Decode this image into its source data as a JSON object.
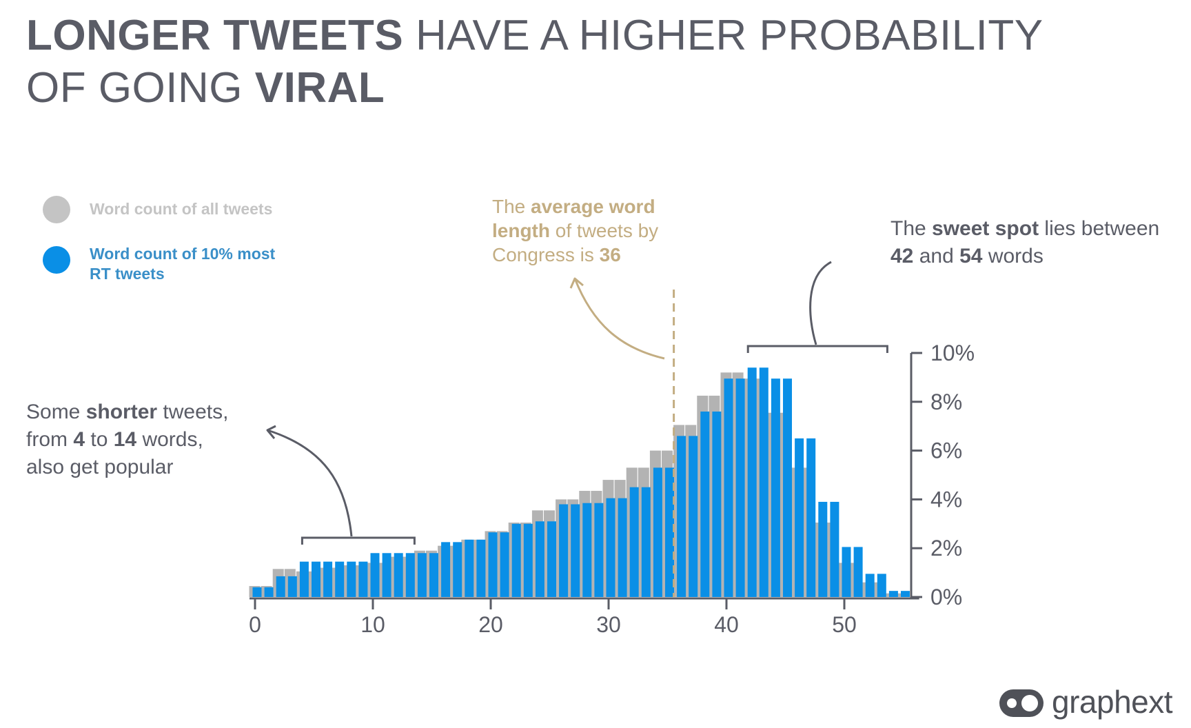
{
  "title": {
    "part1_bold": "LONGER TWEETS",
    "part1_rest": " HAVE A HIGHER PROBABILITY",
    "part2_start": "OF GOING ",
    "part2_bold": "VIRAL"
  },
  "legend": [
    {
      "label": "Word count of all tweets",
      "color": "#c4c4c4"
    },
    {
      "label_line1": "Word count of 10% most",
      "label_line2": "RT tweets",
      "color": "#0a8fe6"
    }
  ],
  "annotations": {
    "average": {
      "l1_pre": "The ",
      "l1_bold": "average word",
      "l2_bold": "length",
      "l2_rest": " of tweets by",
      "l3_pre": "Congress is ",
      "l3_bold": "36"
    },
    "sweet_spot": {
      "l1_pre": "The ",
      "l1_bold": "sweet spot",
      "l1_rest": " lies between",
      "l2_bold1": "42",
      "l2_mid": " and ",
      "l2_bold2": "54",
      "l2_rest": " words"
    },
    "shorter": {
      "l1_pre": "Some ",
      "l1_bold": "shorter",
      "l1_rest": " tweets,",
      "l2_pre": "from ",
      "l2_bold1": "4",
      "l2_mid": " to ",
      "l2_bold2": "14",
      "l2_rest": " words,",
      "l3": "also get popular"
    }
  },
  "logo": {
    "text": "graphext",
    "icon": "graphext-logo-icon"
  },
  "colors": {
    "all": "#b3b3b3",
    "rt": "#0a8fe6",
    "axis": "#5a5c66",
    "gold": "#c3ad82"
  },
  "chart_data": {
    "type": "bar",
    "xlabel": "",
    "ylabel": "",
    "xlim": [
      0,
      56
    ],
    "ylim": [
      0,
      10
    ],
    "x_ticks": [
      "0",
      "10",
      "20",
      "30",
      "40",
      "50"
    ],
    "y_ticks": [
      "0%",
      "2%",
      "4%",
      "6%",
      "8%",
      "10%"
    ],
    "y_axis_position": "right",
    "x": [
      0,
      1,
      2,
      3,
      4,
      5,
      6,
      7,
      8,
      9,
      10,
      11,
      12,
      13,
      14,
      15,
      16,
      17,
      18,
      19,
      20,
      21,
      22,
      23,
      24,
      25,
      26,
      27,
      28,
      29,
      30,
      31,
      32,
      33,
      34,
      35,
      36,
      37,
      38,
      39,
      40,
      41,
      42,
      43,
      44,
      45,
      46,
      47,
      48,
      49,
      50,
      51,
      52,
      53,
      54,
      55
    ],
    "series": [
      {
        "name": "Word count of all tweets",
        "values": [
          0.45,
          0.45,
          1.15,
          1.15,
          1.05,
          1.05,
          1.2,
          1.2,
          1.3,
          1.3,
          1.4,
          1.4,
          1.65,
          1.65,
          1.9,
          1.9,
          2.1,
          2.1,
          2.35,
          2.35,
          2.7,
          2.7,
          3.05,
          3.05,
          3.55,
          3.55,
          4.0,
          4.0,
          4.35,
          4.35,
          4.8,
          4.8,
          5.3,
          5.3,
          6.0,
          6.0,
          7.05,
          7.05,
          8.25,
          8.25,
          9.2,
          9.2,
          8.95,
          8.95,
          7.55,
          7.55,
          5.3,
          5.3,
          3.05,
          3.05,
          1.4,
          1.4,
          0.6,
          0.6,
          0.15,
          0.15
        ]
      },
      {
        "name": "Word count of 10% most RT tweets",
        "values": [
          0.4,
          0.4,
          0.85,
          0.85,
          1.45,
          1.45,
          1.45,
          1.45,
          1.45,
          1.45,
          1.8,
          1.8,
          1.8,
          1.8,
          1.8,
          1.8,
          2.25,
          2.25,
          2.35,
          2.35,
          2.65,
          2.65,
          3.0,
          3.0,
          3.1,
          3.1,
          3.8,
          3.8,
          3.85,
          3.85,
          4.05,
          4.05,
          4.5,
          4.5,
          5.3,
          5.3,
          6.6,
          6.6,
          7.6,
          7.6,
          8.95,
          8.95,
          9.4,
          9.4,
          8.95,
          8.95,
          6.5,
          6.5,
          3.9,
          3.9,
          2.05,
          2.05,
          0.95,
          0.95,
          0.25,
          0.25
        ]
      }
    ],
    "reference_line": {
      "x": 36,
      "style": "dashed"
    },
    "brackets": [
      {
        "from": 4,
        "to": 14
      },
      {
        "from": 42,
        "to": 54
      }
    ],
    "grid": false,
    "legend_position": "top-left"
  }
}
